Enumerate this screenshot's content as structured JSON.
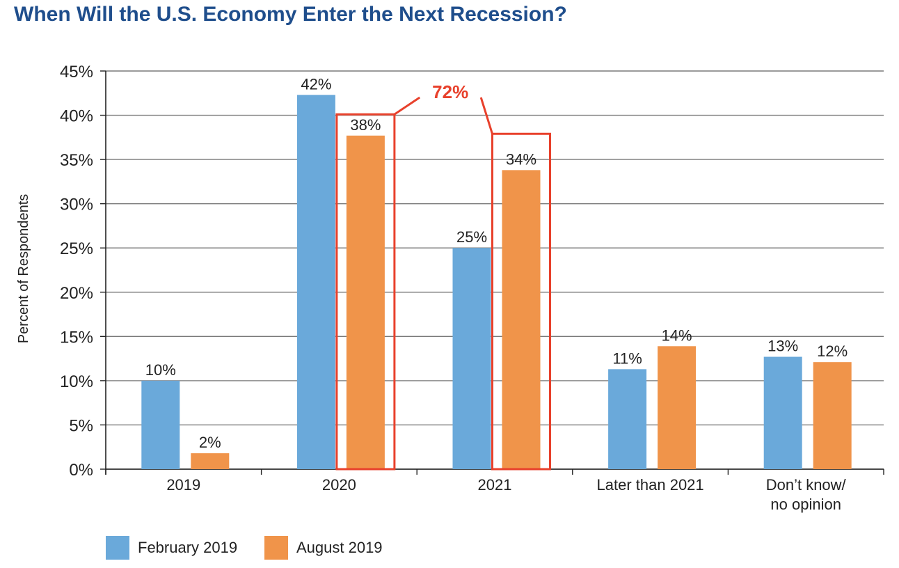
{
  "title": "When Will the U.S. Economy Enter the Next Recession?",
  "colors": {
    "title": "#1f4e8c",
    "february": "#6aa9da",
    "august": "#f0944a",
    "highlight": "#e8412c",
    "grid": "#7a7a7a"
  },
  "legend": {
    "february_label": "February 2019",
    "august_label": "August 2019"
  },
  "callout": {
    "label": "72%"
  },
  "chart_data": {
    "type": "bar",
    "title": "When Will the U.S. Economy Enter the Next Recession?",
    "xlabel": "",
    "ylabel": "Percent of Respondents",
    "ylim": [
      0,
      45
    ],
    "yticks": [
      "0%",
      "5%",
      "10%",
      "15%",
      "20%",
      "25%",
      "30%",
      "35%",
      "40%",
      "45%"
    ],
    "grid": true,
    "legend_position": "bottom-left",
    "categories": [
      [
        "2019"
      ],
      [
        "2020"
      ],
      [
        "2021"
      ],
      [
        "Later than 2021"
      ],
      [
        "Don’t know/",
        "no opinion"
      ]
    ],
    "series": [
      {
        "name": "February 2019",
        "values": [
          10,
          42.3,
          25,
          11.3,
          12.7
        ],
        "labels": [
          "10%",
          "42%",
          "25%",
          "11%",
          "13%"
        ]
      },
      {
        "name": "August 2019",
        "values": [
          1.8,
          37.7,
          33.8,
          13.9,
          12.1
        ],
        "labels": [
          "2%",
          "38%",
          "34%",
          "14%",
          "12%"
        ]
      }
    ],
    "annotation": {
      "text": "72%",
      "highlighted": [
        "2020 August 2019",
        "2021 August 2019"
      ]
    }
  }
}
